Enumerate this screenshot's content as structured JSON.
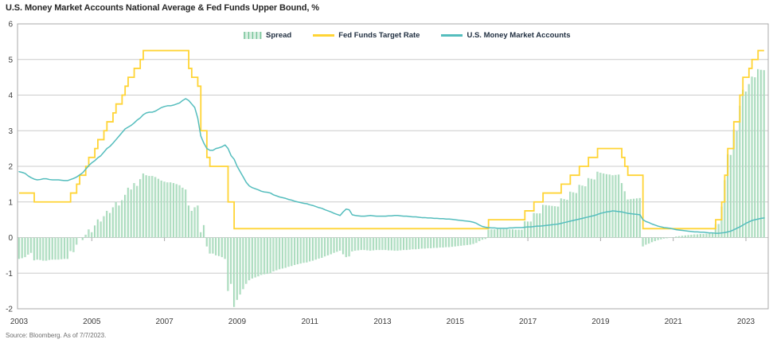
{
  "title": "U.S. Money Market Accounts National Average & Fed Funds Upper Bound, %",
  "source": "Source: Bloomberg. As of 7/7/2023.",
  "legend": [
    {
      "label": "Spread",
      "swatch": "hatched-bars",
      "color": "#a7dcba"
    },
    {
      "label": "Fed Funds Target Rate",
      "swatch": "line",
      "color": "#ffd435"
    },
    {
      "label": "U.S. Money Market Accounts",
      "swatch": "line",
      "color": "#54bdbd"
    }
  ],
  "chart_data": {
    "type": "combo-bar-line",
    "x_start": "2003-01",
    "x_end": "2023-07",
    "x_frequency": "monthly",
    "x_tick_labels": [
      "2003",
      "2005",
      "2007",
      "2009",
      "2011",
      "2013",
      "2015",
      "2017",
      "2019",
      "2021",
      "2023"
    ],
    "y_ticks": [
      6,
      5,
      4,
      3,
      2,
      1,
      0,
      -1,
      -2
    ],
    "ylim": [
      -2,
      6
    ],
    "grid": true,
    "legend_position": "top-center-inside",
    "colors": {
      "bar": "#a7dcba",
      "bar_edge": "#7fc69c",
      "fed": "#ffd435",
      "mma": "#54bdbd",
      "grid": "#cccccc",
      "border": "#a9a9a9",
      "axis_text": "#3d3d3d"
    },
    "series": [
      {
        "name": "Spread",
        "type": "bar",
        "derived": "fed_funds_target_rate minus us_money_market_accounts"
      },
      {
        "name": "Fed Funds Target Rate",
        "type": "step-line",
        "key": "fed",
        "values": [
          1.25,
          1.25,
          1.25,
          1.25,
          1.25,
          1.0,
          1.0,
          1.0,
          1.0,
          1.0,
          1.0,
          1.0,
          1.0,
          1.0,
          1.0,
          1.0,
          1.0,
          1.25,
          1.25,
          1.5,
          1.75,
          1.75,
          2.0,
          2.25,
          2.25,
          2.5,
          2.75,
          2.75,
          3.0,
          3.25,
          3.25,
          3.5,
          3.75,
          3.75,
          4.0,
          4.25,
          4.5,
          4.5,
          4.75,
          4.75,
          5.0,
          5.25,
          5.25,
          5.25,
          5.25,
          5.25,
          5.25,
          5.25,
          5.25,
          5.25,
          5.25,
          5.25,
          5.25,
          5.25,
          5.25,
          5.25,
          4.75,
          4.5,
          4.5,
          4.25,
          3.0,
          3.0,
          2.25,
          2.0,
          2.0,
          2.0,
          2.0,
          2.0,
          2.0,
          1.0,
          1.0,
          0.25,
          0.25,
          0.25,
          0.25,
          0.25,
          0.25,
          0.25,
          0.25,
          0.25,
          0.25,
          0.25,
          0.25,
          0.25,
          0.25,
          0.25,
          0.25,
          0.25,
          0.25,
          0.25,
          0.25,
          0.25,
          0.25,
          0.25,
          0.25,
          0.25,
          0.25,
          0.25,
          0.25,
          0.25,
          0.25,
          0.25,
          0.25,
          0.25,
          0.25,
          0.25,
          0.25,
          0.25,
          0.25,
          0.25,
          0.25,
          0.25,
          0.25,
          0.25,
          0.25,
          0.25,
          0.25,
          0.25,
          0.25,
          0.25,
          0.25,
          0.25,
          0.25,
          0.25,
          0.25,
          0.25,
          0.25,
          0.25,
          0.25,
          0.25,
          0.25,
          0.25,
          0.25,
          0.25,
          0.25,
          0.25,
          0.25,
          0.25,
          0.25,
          0.25,
          0.25,
          0.25,
          0.25,
          0.25,
          0.25,
          0.25,
          0.25,
          0.25,
          0.25,
          0.25,
          0.25,
          0.25,
          0.25,
          0.25,
          0.25,
          0.5,
          0.5,
          0.5,
          0.5,
          0.5,
          0.5,
          0.5,
          0.5,
          0.5,
          0.5,
          0.5,
          0.5,
          0.75,
          0.75,
          0.75,
          1.0,
          1.0,
          1.0,
          1.25,
          1.25,
          1.25,
          1.25,
          1.25,
          1.25,
          1.5,
          1.5,
          1.5,
          1.75,
          1.75,
          1.75,
          2.0,
          2.0,
          2.0,
          2.25,
          2.25,
          2.25,
          2.5,
          2.5,
          2.5,
          2.5,
          2.5,
          2.5,
          2.5,
          2.5,
          2.25,
          2.0,
          1.75,
          1.75,
          1.75,
          1.75,
          1.75,
          0.25,
          0.25,
          0.25,
          0.25,
          0.25,
          0.25,
          0.25,
          0.25,
          0.25,
          0.25,
          0.25,
          0.25,
          0.25,
          0.25,
          0.25,
          0.25,
          0.25,
          0.25,
          0.25,
          0.25,
          0.25,
          0.25,
          0.25,
          0.25,
          0.5,
          0.5,
          1.0,
          1.75,
          2.5,
          2.5,
          3.25,
          3.25,
          4.0,
          4.5,
          4.5,
          4.75,
          5.0,
          5.0,
          5.25,
          5.25,
          5.25
        ]
      },
      {
        "name": "U.S. Money Market Accounts",
        "type": "line",
        "key": "mma",
        "values": [
          1.85,
          1.83,
          1.8,
          1.73,
          1.68,
          1.64,
          1.62,
          1.63,
          1.65,
          1.65,
          1.63,
          1.62,
          1.62,
          1.62,
          1.61,
          1.6,
          1.6,
          1.63,
          1.66,
          1.7,
          1.76,
          1.82,
          1.92,
          2.02,
          2.1,
          2.16,
          2.24,
          2.3,
          2.4,
          2.5,
          2.56,
          2.65,
          2.75,
          2.85,
          2.95,
          3.05,
          3.1,
          3.15,
          3.22,
          3.3,
          3.36,
          3.45,
          3.5,
          3.52,
          3.52,
          3.55,
          3.6,
          3.65,
          3.68,
          3.7,
          3.7,
          3.72,
          3.75,
          3.78,
          3.85,
          3.9,
          3.85,
          3.75,
          3.65,
          3.35,
          2.85,
          2.65,
          2.5,
          2.45,
          2.45,
          2.5,
          2.52,
          2.55,
          2.6,
          2.5,
          2.3,
          2.2,
          2.0,
          1.85,
          1.7,
          1.55,
          1.45,
          1.4,
          1.37,
          1.34,
          1.3,
          1.28,
          1.27,
          1.25,
          1.2,
          1.17,
          1.14,
          1.12,
          1.1,
          1.07,
          1.05,
          1.02,
          1.0,
          0.98,
          0.96,
          0.95,
          0.92,
          0.9,
          0.87,
          0.84,
          0.82,
          0.78,
          0.75,
          0.72,
          0.68,
          0.65,
          0.62,
          0.72,
          0.8,
          0.78,
          0.64,
          0.62,
          0.61,
          0.6,
          0.6,
          0.61,
          0.62,
          0.61,
          0.6,
          0.6,
          0.6,
          0.6,
          0.61,
          0.61,
          0.62,
          0.62,
          0.61,
          0.6,
          0.6,
          0.59,
          0.58,
          0.58,
          0.57,
          0.56,
          0.56,
          0.55,
          0.55,
          0.54,
          0.54,
          0.53,
          0.53,
          0.52,
          0.52,
          0.51,
          0.5,
          0.49,
          0.48,
          0.47,
          0.46,
          0.45,
          0.43,
          0.4,
          0.35,
          0.31,
          0.29,
          0.28,
          0.27,
          0.27,
          0.26,
          0.26,
          0.26,
          0.26,
          0.27,
          0.27,
          0.28,
          0.28,
          0.28,
          0.29,
          0.3,
          0.3,
          0.31,
          0.32,
          0.32,
          0.33,
          0.34,
          0.35,
          0.36,
          0.37,
          0.38,
          0.4,
          0.42,
          0.44,
          0.46,
          0.48,
          0.5,
          0.52,
          0.54,
          0.56,
          0.58,
          0.6,
          0.62,
          0.65,
          0.68,
          0.7,
          0.72,
          0.73,
          0.75,
          0.74,
          0.73,
          0.72,
          0.7,
          0.68,
          0.67,
          0.66,
          0.65,
          0.64,
          0.5,
          0.45,
          0.42,
          0.38,
          0.35,
          0.32,
          0.3,
          0.28,
          0.27,
          0.26,
          0.24,
          0.22,
          0.21,
          0.2,
          0.19,
          0.18,
          0.17,
          0.16,
          0.16,
          0.15,
          0.15,
          0.14,
          0.13,
          0.13,
          0.12,
          0.12,
          0.13,
          0.14,
          0.16,
          0.18,
          0.22,
          0.26,
          0.3,
          0.35,
          0.4,
          0.44,
          0.48,
          0.5,
          0.52,
          0.54,
          0.55
        ]
      }
    ]
  }
}
